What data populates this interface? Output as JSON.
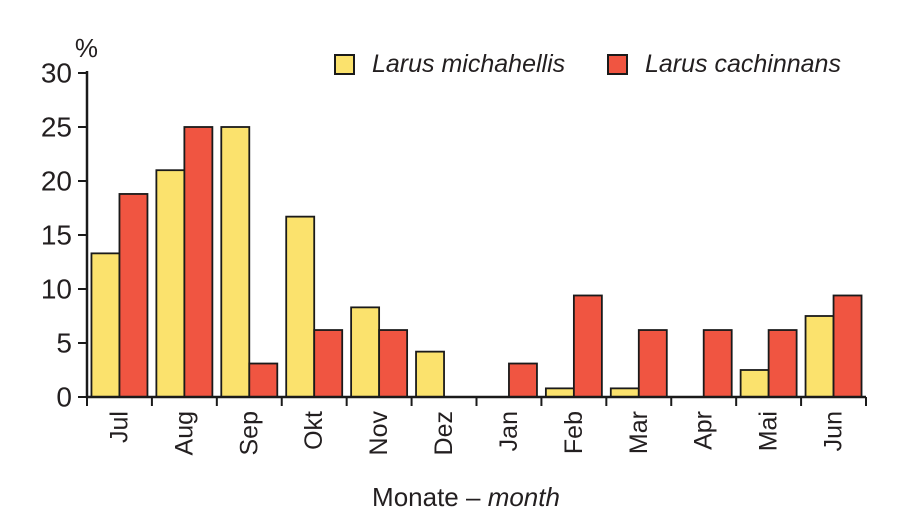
{
  "y_axis": {
    "unit_label": "%",
    "ticks": [
      0,
      5,
      10,
      15,
      20,
      25,
      30
    ]
  },
  "x_axis": {
    "title_regular": "Monate –",
    "title_italic": "month"
  },
  "legend": {
    "items": [
      {
        "label": "Larus michahellis",
        "color": "#FBE26D"
      },
      {
        "label": "Larus cachinnans",
        "color": "#F05541"
      }
    ]
  },
  "chart_data": {
    "type": "bar",
    "categories": [
      "Jul",
      "Aug",
      "Sep",
      "Okt",
      "Nov",
      "Dez",
      "Jan",
      "Feb",
      "Mar",
      "Apr",
      "Mai",
      "Jun"
    ],
    "series": [
      {
        "name": "Larus michahellis",
        "color": "#FBE26D",
        "values": [
          13.3,
          21,
          25,
          16.7,
          8.3,
          4.2,
          0,
          0.8,
          0.8,
          0,
          2.5,
          7.5
        ]
      },
      {
        "name": "Larus cachinnans",
        "color": "#F05541",
        "values": [
          18.8,
          25,
          3.1,
          6.2,
          6.2,
          0,
          3.1,
          9.4,
          6.2,
          6.2,
          6.2,
          9.4
        ]
      }
    ],
    "title": "",
    "xlabel": "Monate – month",
    "ylabel": "%",
    "ylim": [
      0,
      30
    ],
    "yticks": [
      0,
      5,
      10,
      15,
      20,
      25,
      30
    ],
    "grid": false,
    "legend_position": "top-center",
    "bar_outline_color": "#1A1A1A"
  },
  "colors": {
    "background": "#FFFFFF",
    "axis": "#1A1A1A",
    "text": "#231F20"
  }
}
